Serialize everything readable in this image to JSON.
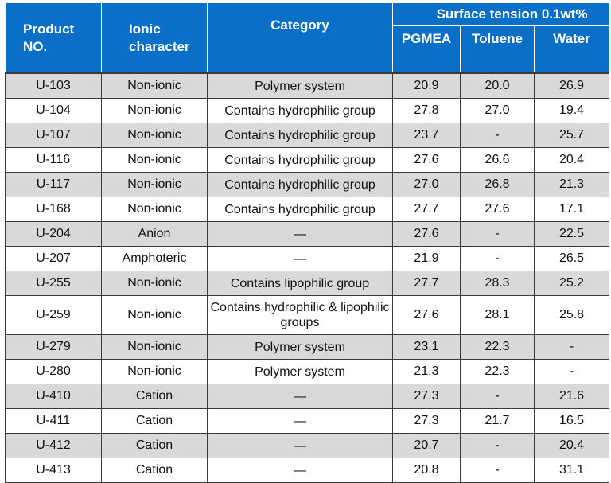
{
  "header": {
    "product_no_line1": "Product",
    "product_no_line2": "NO.",
    "ionic_line1": "Ionic",
    "ionic_line2": "character",
    "category": "Category",
    "surface_tension": "Surface tension 0.1wt%",
    "pgmea": "PGMEA",
    "toluene": "Toluene",
    "water": "Water"
  },
  "rows": [
    {
      "product": "U-103",
      "ionic": "Non-ionic",
      "category": "Polymer system",
      "pgmea": "20.9",
      "toluene": "20.0",
      "water": "26.9"
    },
    {
      "product": "U-104",
      "ionic": "Non-ionic",
      "category": "Contains hydrophilic group",
      "pgmea": "27.8",
      "toluene": "27.0",
      "water": "19.4"
    },
    {
      "product": "U-107",
      "ionic": "Non-ionic",
      "category": "Contains hydrophilic group",
      "pgmea": "23.7",
      "toluene": "-",
      "water": "25.7"
    },
    {
      "product": "U-116",
      "ionic": "Non-ionic",
      "category": "Contains hydrophilic group",
      "pgmea": "27.6",
      "toluene": "26.6",
      "water": "20.4"
    },
    {
      "product": "U-117",
      "ionic": "Non-ionic",
      "category": "Contains hydrophilic group",
      "pgmea": "27.0",
      "toluene": "26.8",
      "water": "21.3"
    },
    {
      "product": "U-168",
      "ionic": "Non-ionic",
      "category": "Contains hydrophilic group",
      "pgmea": "27.7",
      "toluene": "27.6",
      "water": "17.1"
    },
    {
      "product": "U-204",
      "ionic": "Anion",
      "category": "—",
      "pgmea": "27.6",
      "toluene": "-",
      "water": "22.5"
    },
    {
      "product": "U-207",
      "ionic": "Amphoteric",
      "category": "—",
      "pgmea": "21.9",
      "toluene": "-",
      "water": "26.5"
    },
    {
      "product": "U-255",
      "ionic": "Non-ionic",
      "category": "Contains lipophilic group",
      "pgmea": "27.7",
      "toluene": "28.3",
      "water": "25.2"
    },
    {
      "product": "U-259",
      "ionic": "Non-ionic",
      "category": "Contains hydrophilic & lipophilic groups",
      "pgmea": "27.6",
      "toluene": "28.1",
      "water": "25.8"
    },
    {
      "product": "U-279",
      "ionic": "Non-ionic",
      "category": "Polymer system",
      "pgmea": "23.1",
      "toluene": "22.3",
      "water": "-"
    },
    {
      "product": "U-280",
      "ionic": "Non-ionic",
      "category": "Polymer system",
      "pgmea": "21.3",
      "toluene": "22.3",
      "water": "-"
    },
    {
      "product": "U-410",
      "ionic": "Cation",
      "category": "—",
      "pgmea": "27.3",
      "toluene": "-",
      "water": "21.6"
    },
    {
      "product": "U-411",
      "ionic": "Cation",
      "category": "—",
      "pgmea": "27.3",
      "toluene": "21.7",
      "water": "16.5"
    },
    {
      "product": "U-412",
      "ionic": "Cation",
      "category": "—",
      "pgmea": "20.7",
      "toluene": "-",
      "water": "20.4"
    },
    {
      "product": "U-413",
      "ionic": "Cation",
      "category": "—",
      "pgmea": "20.8",
      "toluene": "-",
      "water": "31.1"
    }
  ]
}
